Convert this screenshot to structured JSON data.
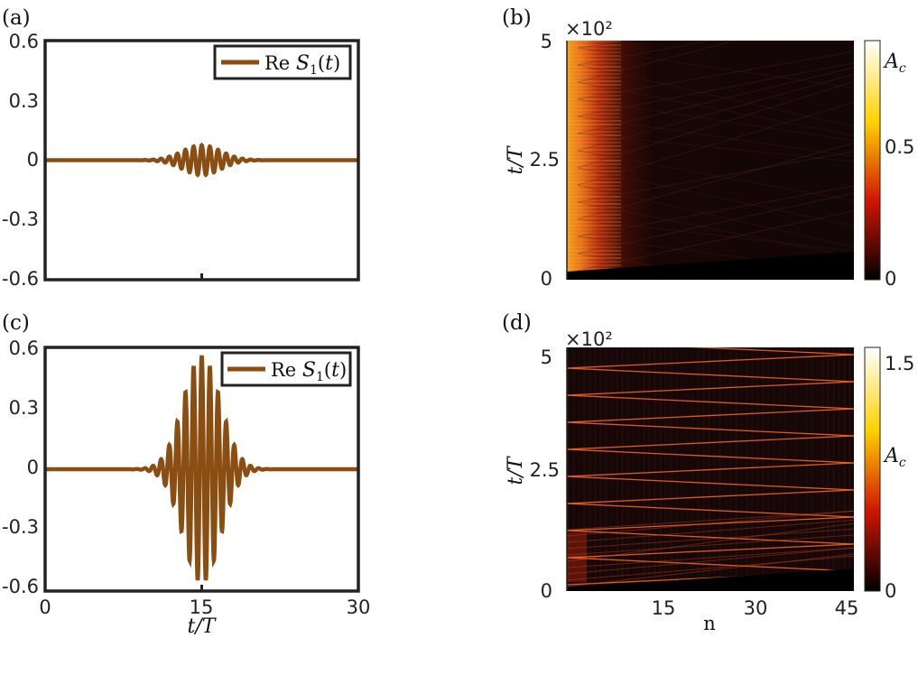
{
  "figure": {
    "panel_labels": [
      "(a)",
      "(b)",
      "(c)",
      "(d)"
    ]
  },
  "chart_data": [
    {
      "id": "a",
      "type": "line",
      "legend": "Re S1(t)",
      "legend_position": "top-right",
      "xlim": [
        0,
        30
      ],
      "ylim": [
        -0.6,
        0.6
      ],
      "yticks": [
        "0.6",
        "0.3",
        "0",
        "-0.3",
        "-0.6"
      ],
      "xticks": [],
      "xlabel": "",
      "color": "#8B4E12",
      "envelope": {
        "center": 15,
        "width": 2.6,
        "amplitude": 0.075,
        "period": 0.78
      }
    },
    {
      "id": "c",
      "type": "line",
      "legend": "Re S1(t)",
      "legend_position": "top-right",
      "xlim": [
        0,
        30
      ],
      "ylim": [
        -0.6,
        0.6
      ],
      "yticks": [
        "0.6",
        "0.3",
        "0",
        "-0.3",
        "-0.6"
      ],
      "xticks": [
        "0",
        "15",
        "30"
      ],
      "xlabel": "t/T",
      "color": "#8B4E12",
      "envelope": {
        "center": 15,
        "width": 2.5,
        "amplitude": 0.56,
        "period": 0.78
      }
    },
    {
      "id": "b",
      "type": "heatmap",
      "ylabel": "t/T",
      "y_multiplier": "×10²",
      "yticks": [
        "5",
        "2.5",
        "0"
      ],
      "ylim": [
        0,
        500
      ],
      "xlim": [
        1,
        45
      ],
      "colorbar_ticks": [
        "A_c",
        "0.5",
        "0"
      ],
      "colorbar_max": 0.85
    },
    {
      "id": "d",
      "type": "heatmap",
      "ylabel": "t/T",
      "y_multiplier": "×10²",
      "yticks": [
        "5",
        "2.5",
        "0"
      ],
      "ylim": [
        0,
        500
      ],
      "xlim": [
        1,
        45
      ],
      "xticks": [
        "15",
        "30",
        "45"
      ],
      "xlabel": "n",
      "colorbar_ticks": [
        "1.5",
        "A_c",
        "0"
      ],
      "colorbar_max": 1.6
    }
  ]
}
